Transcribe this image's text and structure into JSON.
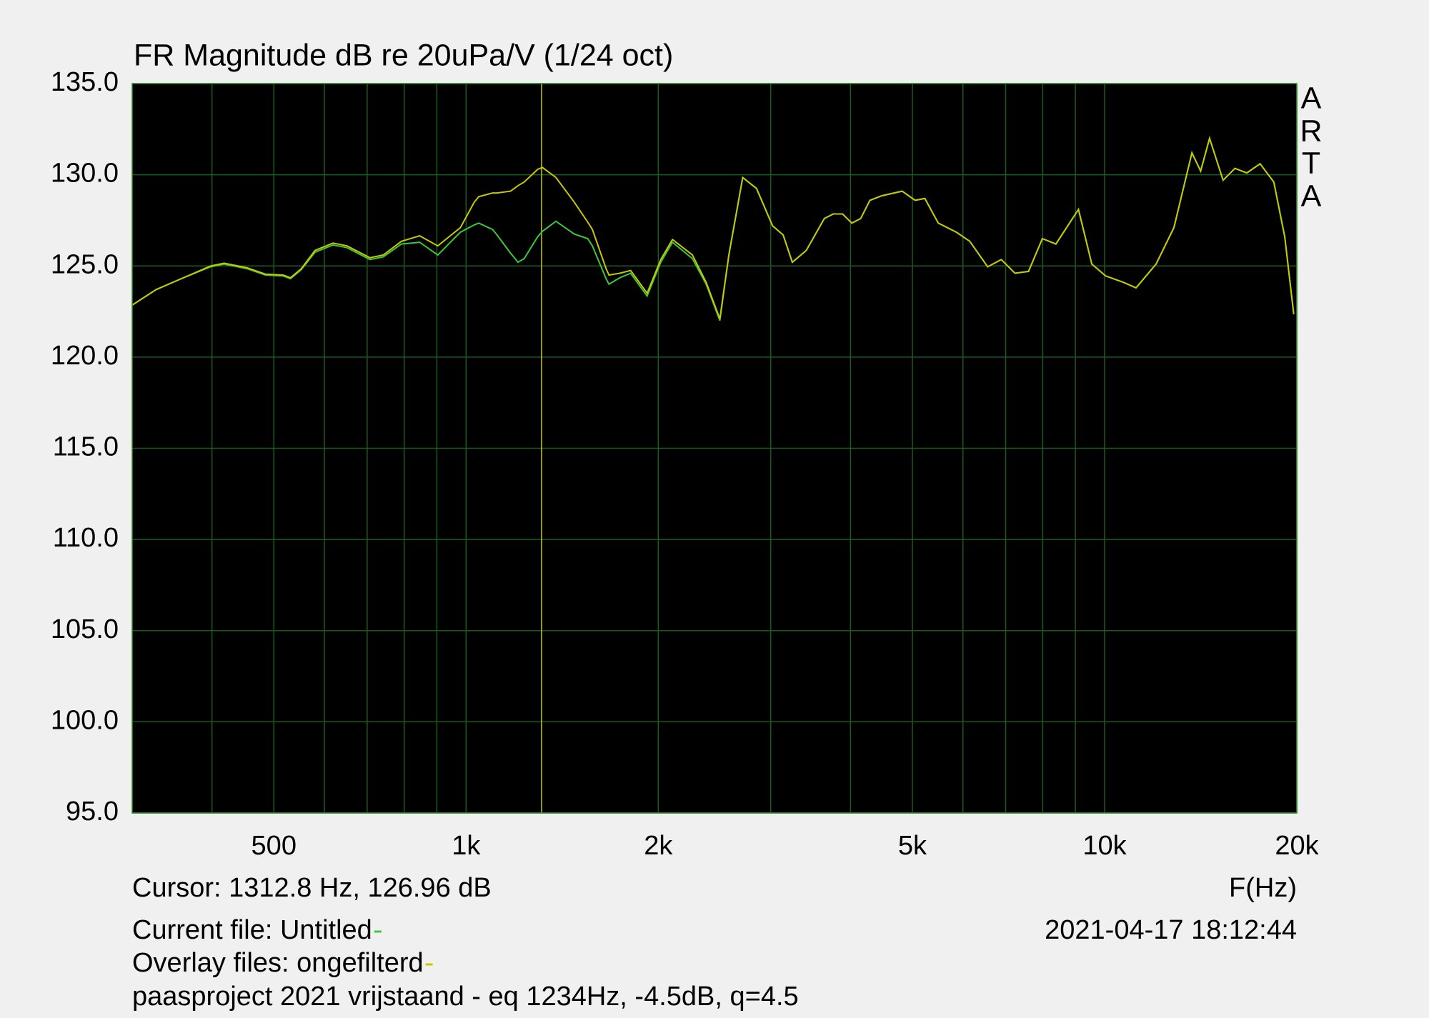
{
  "chart_data": {
    "type": "line",
    "title": "FR Magnitude dB re 20uPa/V (1/24 oct)",
    "watermark": [
      "A",
      "R",
      "T",
      "A"
    ],
    "x_unit_label": "F(Hz)",
    "cursor": {
      "text": "Cursor: 1312.8 Hz, 126.96 dB",
      "x": 1312.8,
      "color": "#c8c800"
    },
    "current_file_label": "Current file: ",
    "overlay_files_label": "Overlay files: ",
    "timestamp": "2021-04-17  18:12:44",
    "note": "paasproject 2021 vrijstaand - eq 1234Hz, -4.5dB, q=4.5",
    "log_x": true,
    "grid": true,
    "xlim": [
      300,
      20000
    ],
    "ylim": [
      95,
      135
    ],
    "xticks": [
      500,
      {
        "value": 1000,
        "label": "1k"
      },
      {
        "value": 2000,
        "label": "2k"
      },
      {
        "value": 5000,
        "label": "5k"
      },
      {
        "value": 10000,
        "label": "10k"
      },
      {
        "value": 20000,
        "label": "20k"
      }
    ],
    "xgrid_minor": [
      400,
      600,
      700,
      800,
      900,
      3000,
      4000,
      6000,
      7000,
      8000,
      9000
    ],
    "yticks": [
      {
        "value": 95,
        "label": "95.0"
      },
      {
        "value": 100,
        "label": "100.0"
      },
      {
        "value": 105,
        "label": "105.0"
      },
      {
        "value": 110,
        "label": "110.0"
      },
      {
        "value": 115,
        "label": "115.0"
      },
      {
        "value": 120,
        "label": "120.0"
      },
      {
        "value": 125,
        "label": "125.0"
      },
      {
        "value": 130,
        "label": "130.0"
      },
      {
        "value": 135,
        "label": "135.0"
      }
    ],
    "x": [
      300,
      327,
      361,
      398,
      418,
      454,
      485,
      517,
      531,
      552,
      580,
      619,
      651,
      707,
      742,
      792,
      846,
      903,
      980,
      1030,
      1047,
      1100,
      1118,
      1174,
      1206,
      1233,
      1295,
      1317,
      1383,
      1477,
      1551,
      1577,
      1657,
      1674,
      1741,
      1810,
      1921,
      2018,
      2105,
      2262,
      2377,
      2497,
      2580,
      2712,
      2850,
      3020,
      3138,
      3243,
      3410,
      3640,
      3760,
      3887,
      4019,
      4150,
      4290,
      4480,
      4820,
      5050,
      5230,
      5490,
      5860,
      6150,
      6560,
      6890,
      7240,
      7600,
      7990,
      8390,
      9100,
      9550,
      10040,
      10700,
      11200,
      12040,
      12840,
      13700,
      14140,
      14600,
      15330,
      16000,
      16700,
      17520,
      18410,
      19150,
      19780
    ],
    "series": [
      {
        "name": "Untitled",
        "color": "#3cc83c",
        "values": [
          122.85,
          123.7,
          124.35,
          124.95,
          125.1,
          124.85,
          124.5,
          124.45,
          124.3,
          124.8,
          125.75,
          126.15,
          126.0,
          125.35,
          125.5,
          126.2,
          126.3,
          125.6,
          126.85,
          127.25,
          127.35,
          127.0,
          126.7,
          125.7,
          125.2,
          125.4,
          126.6,
          126.9,
          127.45,
          126.75,
          126.5,
          126.1,
          124.3,
          124.0,
          124.35,
          124.6,
          123.35,
          125.2,
          126.3,
          125.4,
          124.0,
          122.0,
          125.6,
          129.85,
          129.25,
          127.2,
          126.7,
          125.2,
          125.85,
          127.6,
          127.85,
          127.85,
          127.35,
          127.6,
          128.6,
          128.85,
          129.1,
          128.6,
          128.7,
          127.35,
          126.85,
          126.35,
          124.95,
          125.35,
          124.6,
          124.7,
          126.5,
          126.2,
          128.1,
          125.1,
          124.45,
          124.1,
          123.8,
          125.1,
          127.1,
          131.2,
          130.2,
          132.0,
          129.7,
          130.35,
          130.1,
          130.6,
          129.6,
          126.6,
          122.35
        ]
      },
      {
        "name": "ongefilterd",
        "color": "#c8c800",
        "values": [
          122.85,
          123.7,
          124.35,
          125.0,
          125.15,
          124.9,
          124.55,
          124.5,
          124.35,
          124.85,
          125.85,
          126.25,
          126.1,
          125.45,
          125.6,
          126.35,
          126.65,
          126.1,
          127.1,
          128.5,
          128.8,
          129.0,
          129.0,
          129.1,
          129.4,
          129.6,
          130.3,
          130.4,
          129.85,
          128.5,
          127.4,
          127.0,
          124.85,
          124.5,
          124.6,
          124.75,
          123.5,
          125.35,
          126.45,
          125.6,
          124.1,
          122.1,
          125.6,
          129.85,
          129.25,
          127.2,
          126.7,
          125.2,
          125.85,
          127.6,
          127.85,
          127.85,
          127.35,
          127.6,
          128.6,
          128.85,
          129.1,
          128.6,
          128.7,
          127.35,
          126.85,
          126.35,
          124.95,
          125.35,
          124.6,
          124.7,
          126.5,
          126.2,
          128.1,
          125.1,
          124.45,
          124.1,
          123.8,
          125.1,
          127.1,
          131.2,
          130.2,
          132.0,
          129.7,
          130.35,
          130.1,
          130.6,
          129.6,
          126.6,
          122.35
        ]
      }
    ]
  }
}
